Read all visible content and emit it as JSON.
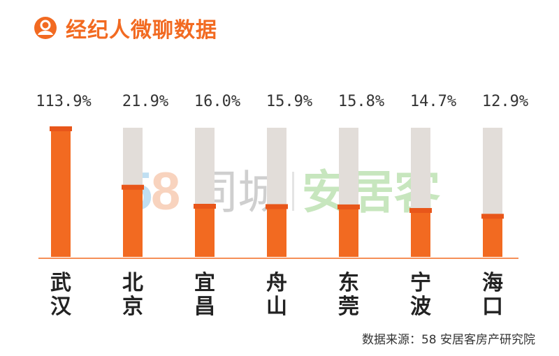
{
  "header": {
    "title": "经纪人微聊数据",
    "icon": "user-avatar-icon"
  },
  "source": "数据来源：58 安居客房产研究院",
  "watermark": {
    "brand_58": "58",
    "brand_tongcheng": "同城",
    "brand_anjuke": "安居客"
  },
  "colors": {
    "accent": "#f26a21",
    "bar": "#f26a21",
    "track": "#e2ddd9",
    "value_text": "#333333",
    "city_text": "#222222",
    "watermark_58_blue": "#8ec6e8",
    "watermark_58_orange": "#f4b08a",
    "watermark_tongcheng": "#a9a9a9",
    "watermark_anjuke": "#9bd28a"
  },
  "chart_data": {
    "type": "bar",
    "categories": [
      "武\n汉",
      "北\n京",
      "宜\n昌",
      "舟\n山",
      "东\n莞",
      "宁\n波",
      "海\n口"
    ],
    "values": [
      113.9,
      21.9,
      16.0,
      15.9,
      15.8,
      14.7,
      12.9
    ],
    "value_labels": [
      "113.9%",
      "21.9%",
      "16.0%",
      "15.9%",
      "15.8%",
      "14.7%",
      "12.9%"
    ],
    "unit": "%",
    "ylim": [
      0,
      113.9
    ],
    "grid": false,
    "legend": "none"
  }
}
